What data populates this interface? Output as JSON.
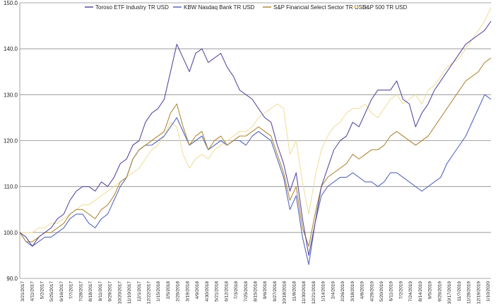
{
  "chart_data": {
    "type": "line",
    "title": "",
    "xlabel": "",
    "ylabel": "",
    "ylim": [
      90,
      150
    ],
    "yticks": [
      "90.0",
      "100.0",
      "110.0",
      "120.0",
      "130.0",
      "140.0",
      "150.0"
    ],
    "grid": "horizontal",
    "legend_position": "top",
    "x_tick_labels": [
      "3/21/2017",
      "4/11/2017",
      "5/2/2017",
      "5/25/2017",
      "6/16/2017",
      "7/7/2017",
      "7/28/2017",
      "8/18/2017",
      "9/11/2017",
      "9/29/2017",
      "10/20/2017",
      "11/10/2017",
      "12/1/2017",
      "12/22/2017",
      "1/15/2018",
      "2/5/2018",
      "2/26/2018",
      "3/19/2018",
      "4/9/2018",
      "4/30/2018",
      "5/21/2018",
      "6/12/2018",
      "7/3/2018",
      "7/25/2018",
      "8/15/2018",
      "9/6/2018",
      "9/27/2018",
      "10/18/2018",
      "11/8/2018",
      "11/30/2018",
      "12/21/2018",
      "1/14/2019",
      "2/4/2019",
      "2/26/2019",
      "3/18/2019",
      "4/8/2019",
      "4/29/2019",
      "5/20/2019",
      "6/11/2019",
      "7/2/2019",
      "7/24/2019",
      "8/14/2019",
      "9/5/2019",
      "9/26/2019",
      "10/17/2019",
      "11/7/2019",
      "11/28/2019",
      "12/19/2019",
      "1/10/2020"
    ],
    "series": [
      {
        "name": "Toroso ETF Industry TR USD",
        "color": "#5b4a9e",
        "values": [
          100,
          99,
          97,
          99,
          100,
          101,
          103,
          104,
          107,
          109,
          110,
          110,
          109,
          111,
          110,
          112,
          115,
          116,
          119,
          120,
          124,
          126,
          127,
          129,
          135,
          141,
          138,
          135,
          139,
          140,
          137,
          138,
          139,
          136,
          134,
          131,
          130,
          129,
          127,
          125,
          124,
          119,
          115,
          109,
          113,
          103,
          95,
          102,
          110,
          114,
          118,
          120,
          121,
          124,
          123,
          126,
          129,
          131,
          131,
          131,
          133,
          129,
          128,
          123,
          126,
          128,
          131,
          133,
          135,
          137,
          139,
          141,
          142,
          143,
          144,
          146
        ]
      },
      {
        "name": "KBW Nasdaq Bank TR USD",
        "color": "#5566bb",
        "values": [
          100,
          98,
          97,
          98,
          99,
          99,
          100,
          101,
          103,
          104,
          104,
          102,
          101,
          103,
          104,
          107,
          110,
          112,
          116,
          118,
          119,
          119,
          120,
          121,
          123,
          125,
          122,
          119,
          120,
          121,
          118,
          119,
          120,
          119,
          120,
          120,
          119,
          121,
          122,
          121,
          120,
          116,
          112,
          105,
          108,
          99,
          93,
          102,
          108,
          110,
          111,
          112,
          112,
          113,
          112,
          111,
          111,
          110,
          111,
          113,
          113,
          112,
          111,
          110,
          109,
          110,
          111,
          112,
          115,
          117,
          119,
          121,
          124,
          127,
          130,
          129
        ]
      },
      {
        "name": "S&P Financial Select Sector TR USD",
        "color": "#b08a3a",
        "values": [
          100,
          98,
          98,
          99,
          100,
          100,
          101,
          102,
          104,
          105,
          105,
          104,
          103,
          105,
          106,
          108,
          111,
          112,
          116,
          118,
          119,
          120,
          121,
          122,
          126,
          128,
          123,
          119,
          121,
          122,
          118,
          120,
          121,
          119,
          120,
          121,
          121,
          122,
          123,
          122,
          121,
          117,
          113,
          107,
          110,
          101,
          97,
          104,
          110,
          112,
          113,
          114,
          115,
          117,
          116,
          117,
          118,
          118,
          119,
          121,
          122,
          121,
          120,
          119,
          120,
          121,
          123,
          125,
          127,
          129,
          131,
          133,
          134,
          135,
          137,
          138
        ]
      },
      {
        "name": "S&P 500 TR USD",
        "color": "#f0dfa0",
        "values": [
          100,
          100,
          100,
          101,
          101,
          102,
          102,
          103,
          104,
          105,
          106,
          106,
          107,
          108,
          109,
          110,
          111,
          112,
          113,
          114,
          116,
          118,
          119,
          121,
          124,
          123,
          117,
          114,
          116,
          117,
          116,
          118,
          119,
          120,
          121,
          122,
          122,
          123,
          125,
          126,
          127,
          128,
          127,
          117,
          120,
          111,
          104,
          112,
          118,
          121,
          123,
          124,
          126,
          127,
          127,
          128,
          126,
          125,
          127,
          129,
          130,
          128,
          129,
          130,
          128,
          131,
          132,
          134,
          136,
          137,
          138,
          140,
          142,
          144,
          146,
          149
        ]
      }
    ]
  }
}
